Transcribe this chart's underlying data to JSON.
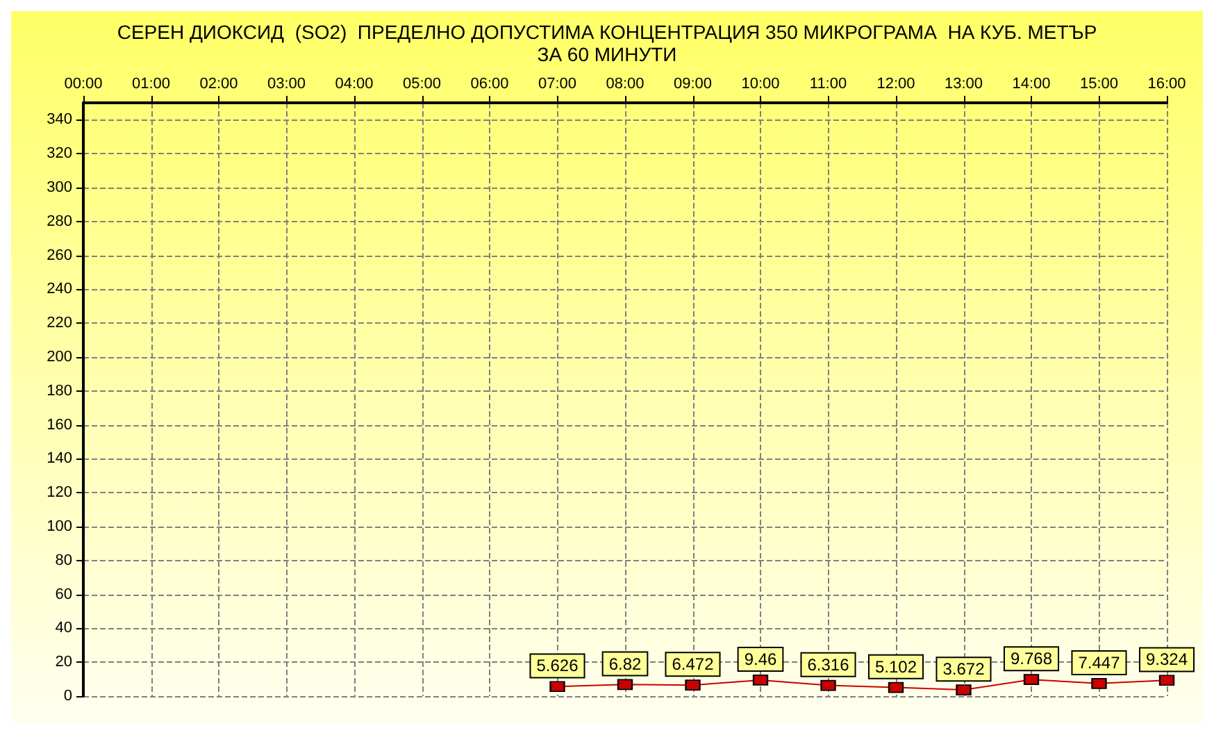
{
  "chart_data": {
    "type": "line",
    "title": "СЕРЕН ДИОКСИД  (SO2)  ПРЕДЕЛНО ДОПУСТИМА КОНЦЕНТРАЦИЯ 350 МИКРОГРАМА  НА КУБ. МЕТЪР\nЗА 60 МИНУТИ",
    "x": [
      7,
      8,
      9,
      10,
      11,
      12,
      13,
      14,
      15,
      16
    ],
    "series": [
      {
        "color": "#cc0000",
        "values": [
          5.626,
          6.82,
          6.472,
          9.46,
          6.316,
          5.102,
          3.672,
          9.768,
          7.447,
          9.324
        ]
      }
    ],
    "xlim": [
      0,
      16
    ],
    "xticks": [
      {
        "value": 0,
        "label": "00:00"
      },
      {
        "value": 1,
        "label": "01:00"
      },
      {
        "value": 2,
        "label": "02:00"
      },
      {
        "value": 3,
        "label": "03:00"
      },
      {
        "value": 4,
        "label": "04:00"
      },
      {
        "value": 5,
        "label": "05:00"
      },
      {
        "value": 6,
        "label": "06:00"
      },
      {
        "value": 7,
        "label": "07:00"
      },
      {
        "value": 8,
        "label": "08:00"
      },
      {
        "value": 9,
        "label": "09:00"
      },
      {
        "value": 10,
        "label": "10:00"
      },
      {
        "value": 11,
        "label": "11:00"
      },
      {
        "value": 12,
        "label": "12:00"
      },
      {
        "value": 13,
        "label": "13:00"
      },
      {
        "value": 14,
        "label": "14:00"
      },
      {
        "value": 15,
        "label": "15:00"
      },
      {
        "value": 16,
        "label": "16:00"
      }
    ],
    "ylim": [
      0,
      350
    ],
    "yticks": [
      0,
      20,
      40,
      60,
      80,
      100,
      120,
      140,
      160,
      180,
      200,
      220,
      240,
      260,
      280,
      300,
      320,
      340
    ],
    "grid": true,
    "marker": "square",
    "line_style": "solid",
    "data_labels": true
  }
}
